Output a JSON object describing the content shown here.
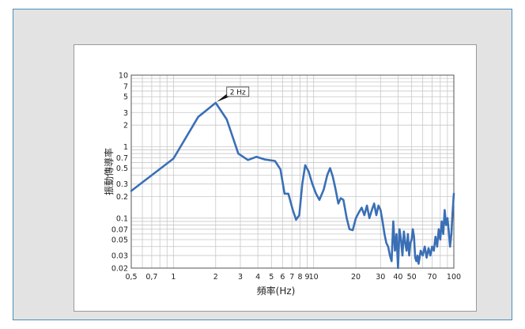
{
  "chart_data": {
    "type": "line",
    "x_scale": "log",
    "y_scale": "log",
    "xlabel": "頻率(Hz)",
    "ylabel": "振動傳導率",
    "xlim": [
      0.5,
      100
    ],
    "ylim": [
      0.02,
      10
    ],
    "x_ticks": [
      {
        "v": 0.5,
        "label": "0,5"
      },
      {
        "v": 0.7,
        "label": "0,7"
      },
      {
        "v": 1,
        "label": "1"
      },
      {
        "v": 2,
        "label": "2"
      },
      {
        "v": 3,
        "label": "3"
      },
      {
        "v": 4,
        "label": "4"
      },
      {
        "v": 5,
        "label": "5"
      },
      {
        "v": 6,
        "label": "6"
      },
      {
        "v": 7,
        "label": "7"
      },
      {
        "v": 8,
        "label": "8"
      },
      {
        "v": 9,
        "label": "9"
      },
      {
        "v": 10,
        "label": "10"
      },
      {
        "v": 20,
        "label": "20"
      },
      {
        "v": 30,
        "label": "30"
      },
      {
        "v": 40,
        "label": "40"
      },
      {
        "v": 50,
        "label": "50"
      },
      {
        "v": 70,
        "label": "70"
      },
      {
        "v": 100,
        "label": "100"
      }
    ],
    "y_ticks": [
      {
        "v": 10,
        "label": "10"
      },
      {
        "v": 7,
        "label": "7"
      },
      {
        "v": 5,
        "label": "5"
      },
      {
        "v": 3,
        "label": "3"
      },
      {
        "v": 2,
        "label": "2"
      },
      {
        "v": 1,
        "label": "1"
      },
      {
        "v": 0.7,
        "label": "0.7"
      },
      {
        "v": 0.5,
        "label": "0.5"
      },
      {
        "v": 0.3,
        "label": "0.3"
      },
      {
        "v": 0.2,
        "label": "0.2"
      },
      {
        "v": 0.1,
        "label": "0.1"
      },
      {
        "v": 0.07,
        "label": "0.07"
      },
      {
        "v": 0.05,
        "label": "0.05"
      },
      {
        "v": 0.03,
        "label": "0.03"
      },
      {
        "v": 0.02,
        "label": "0.02"
      }
    ],
    "x_grid": [
      0.5,
      0.6,
      0.7,
      0.8,
      0.9,
      1,
      2,
      3,
      4,
      5,
      6,
      7,
      8,
      9,
      10,
      20,
      30,
      40,
      50,
      60,
      70,
      80,
      90,
      100
    ],
    "y_grid": [
      0.02,
      0.03,
      0.04,
      0.05,
      0.06,
      0.07,
      0.08,
      0.09,
      0.1,
      0.2,
      0.3,
      0.4,
      0.5,
      0.6,
      0.7,
      0.8,
      0.9,
      1,
      2,
      3,
      4,
      5,
      6,
      7,
      8,
      9,
      10
    ],
    "grid": true,
    "series": [
      {
        "color": "#3a6fb6",
        "points": [
          [
            0.5,
            0.24
          ],
          [
            1,
            0.68
          ],
          [
            1.5,
            2.6
          ],
          [
            2,
            4.1
          ],
          [
            2.4,
            2.4
          ],
          [
            2.9,
            0.8
          ],
          [
            3.4,
            0.65
          ],
          [
            3.9,
            0.72
          ],
          [
            4.5,
            0.66
          ],
          [
            5.3,
            0.63
          ],
          [
            5.8,
            0.48
          ],
          [
            6.2,
            0.22
          ],
          [
            6.6,
            0.22
          ],
          [
            7.1,
            0.13
          ],
          [
            7.5,
            0.095
          ],
          [
            7.9,
            0.11
          ],
          [
            8.3,
            0.3
          ],
          [
            8.7,
            0.55
          ],
          [
            9.2,
            0.45
          ],
          [
            9.8,
            0.3
          ],
          [
            10.4,
            0.22
          ],
          [
            11,
            0.18
          ],
          [
            11.8,
            0.25
          ],
          [
            12.5,
            0.4
          ],
          [
            13.1,
            0.5
          ],
          [
            13.7,
            0.38
          ],
          [
            14.3,
            0.26
          ],
          [
            15,
            0.16
          ],
          [
            15.6,
            0.19
          ],
          [
            16.3,
            0.18
          ],
          [
            17.2,
            0.1
          ],
          [
            18,
            0.07
          ],
          [
            19,
            0.068
          ],
          [
            20,
            0.1
          ],
          [
            21,
            0.12
          ],
          [
            22,
            0.14
          ],
          [
            23,
            0.11
          ],
          [
            24,
            0.15
          ],
          [
            25,
            0.1
          ],
          [
            26,
            0.13
          ],
          [
            27,
            0.16
          ],
          [
            28,
            0.11
          ],
          [
            29,
            0.15
          ],
          [
            30,
            0.13
          ],
          [
            31,
            0.09
          ],
          [
            32,
            0.06
          ],
          [
            33,
            0.045
          ],
          [
            34,
            0.04
          ],
          [
            35,
            0.03
          ],
          [
            36,
            0.025
          ],
          [
            37,
            0.09
          ],
          [
            38,
            0.035
          ],
          [
            39,
            0.06
          ],
          [
            40,
            0.02
          ],
          [
            41,
            0.07
          ],
          [
            42,
            0.05
          ],
          [
            43,
            0.03
          ],
          [
            44,
            0.065
          ],
          [
            45,
            0.045
          ],
          [
            46,
            0.035
          ],
          [
            47,
            0.06
          ],
          [
            48,
            0.03
          ],
          [
            49,
            0.045
          ],
          [
            50,
            0.05
          ],
          [
            51,
            0.07
          ],
          [
            52,
            0.055
          ],
          [
            53,
            0.028
          ],
          [
            54,
            0.025
          ],
          [
            55,
            0.03
          ],
          [
            56,
            0.023
          ],
          [
            58,
            0.035
          ],
          [
            60,
            0.03
          ],
          [
            62,
            0.04
          ],
          [
            64,
            0.028
          ],
          [
            66,
            0.038
          ],
          [
            68,
            0.03
          ],
          [
            70,
            0.04
          ],
          [
            72,
            0.035
          ],
          [
            74,
            0.055
          ],
          [
            76,
            0.04
          ],
          [
            78,
            0.07
          ],
          [
            80,
            0.05
          ],
          [
            82,
            0.09
          ],
          [
            84,
            0.06
          ],
          [
            86,
            0.13
          ],
          [
            88,
            0.08
          ],
          [
            90,
            0.1
          ],
          [
            92,
            0.065
          ],
          [
            94,
            0.04
          ],
          [
            96,
            0.06
          ],
          [
            98,
            0.12
          ],
          [
            100,
            0.22
          ]
        ]
      }
    ],
    "annotations": [
      {
        "text": "2 Hz",
        "x": 2,
        "y": 4.1
      }
    ]
  }
}
